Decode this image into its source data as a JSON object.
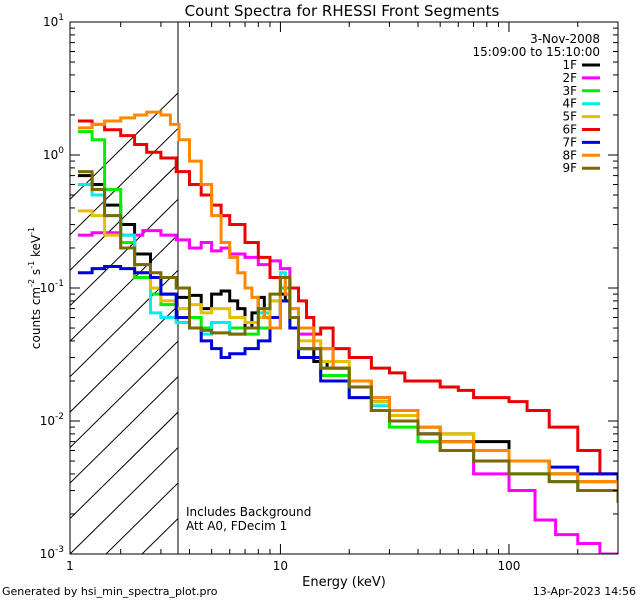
{
  "chart_data": {
    "type": "line",
    "title": "Count Spectra for RHESSI Front Segments",
    "xlabel": "Energy (keV)",
    "ylabel": "counts cm^-2 s^-1 keV^-1",
    "ylabel_parts": {
      "base": "counts cm",
      "exp1": "-2",
      "mid": " s",
      "exp2": "-1",
      "mid2": " keV",
      "exp3": "-1"
    },
    "xscale": "log",
    "yscale": "log",
    "xlim": [
      1.2,
      300
    ],
    "ylim": [
      0.001,
      10
    ],
    "x_ticks": [
      {
        "value": 1,
        "label": "1"
      },
      {
        "value": 10,
        "label": "10"
      },
      {
        "value": 100,
        "label": "100"
      }
    ],
    "y_ticks": [
      {
        "value": 0.001,
        "base": "10",
        "exp": "-3"
      },
      {
        "value": 0.01,
        "base": "10",
        "exp": "-2"
      },
      {
        "value": 0.1,
        "base": "10",
        "exp": "-1"
      },
      {
        "value": 1,
        "base": "10",
        "exp": "0"
      },
      {
        "value": 10,
        "base": "10",
        "exp": "1"
      }
    ],
    "date": "3-Nov-2008",
    "time_range": "15:09:00 to 15:10:00",
    "shaded_region_max_energy": 3,
    "annotations": [
      "Includes Background",
      "Att A0, FDecim 1"
    ],
    "legend_position": "top-right",
    "series": [
      {
        "name": "1F",
        "color": "#000000",
        "x": [
          1.3,
          1.5,
          1.7,
          2.0,
          2.3,
          2.7,
          3.0,
          3.5,
          4.0,
          4.5,
          5.0,
          5.5,
          6.0,
          6.5,
          7.0,
          7.5,
          8.0,
          8.5,
          9.0,
          10.0,
          10.5,
          11.0,
          12.0,
          14.0,
          16.0,
          20.0,
          25.0,
          30.0,
          40.0,
          50.0,
          70.0,
          100.0,
          150.0,
          200.0,
          300.0
        ],
        "y": [
          0.7,
          0.6,
          0.42,
          0.3,
          0.18,
          0.12,
          0.09,
          0.085,
          0.088,
          0.07,
          0.09,
          0.095,
          0.08,
          0.07,
          0.05,
          0.065,
          0.085,
          0.06,
          0.05,
          0.09,
          0.08,
          0.06,
          0.035,
          0.028,
          0.025,
          0.02,
          0.014,
          0.012,
          0.009,
          0.008,
          0.007,
          0.005,
          0.004,
          0.0035,
          0.0028
        ]
      },
      {
        "name": "2F",
        "color": "#ff00ff",
        "x": [
          1.3,
          1.5,
          2.0,
          2.5,
          3.0,
          3.5,
          4.0,
          4.5,
          5.0,
          5.5,
          6.0,
          7.0,
          8.0,
          9.0,
          10.0,
          11.0,
          12.0,
          14.0,
          17.0,
          20.0,
          25.0,
          30.0,
          40.0,
          50.0,
          70.0,
          100.0,
          130.0,
          160.0,
          200.0,
          250.0,
          300.0
        ],
        "y": [
          0.25,
          0.26,
          0.25,
          0.27,
          0.25,
          0.23,
          0.2,
          0.22,
          0.19,
          0.2,
          0.18,
          0.17,
          0.15,
          0.16,
          0.14,
          0.06,
          0.045,
          0.035,
          0.025,
          0.02,
          0.015,
          0.012,
          0.008,
          0.006,
          0.004,
          0.003,
          0.0018,
          0.0014,
          0.0012,
          0.001,
          0.00095
        ]
      },
      {
        "name": "3F",
        "color": "#00ee00",
        "x": [
          1.3,
          1.5,
          1.7,
          2.0,
          2.3,
          2.7,
          3.0,
          3.5,
          4.0,
          4.5,
          5.0,
          6.0,
          7.0,
          8.0,
          9.0,
          10.0,
          11.0,
          12.0,
          15.0,
          20.0,
          25.0,
          30.0,
          40.0,
          50.0,
          70.0,
          100.0,
          150.0,
          200.0,
          300.0
        ],
        "y": [
          1.5,
          1.3,
          0.55,
          0.22,
          0.12,
          0.09,
          0.075,
          0.07,
          0.06,
          0.05,
          0.055,
          0.05,
          0.045,
          0.05,
          0.06,
          0.1,
          0.05,
          0.03,
          0.022,
          0.015,
          0.012,
          0.009,
          0.007,
          0.006,
          0.005,
          0.004,
          0.0035,
          0.003,
          0.0025
        ]
      },
      {
        "name": "4F",
        "color": "#00eeee",
        "x": [
          1.3,
          1.5,
          1.7,
          2.0,
          2.3,
          2.7,
          3.0,
          3.5,
          4.0,
          4.5,
          5.0,
          6.0,
          7.0,
          8.0,
          9.0,
          10.0,
          10.5,
          11.0,
          12.0,
          15.0,
          20.0,
          25.0,
          30.0,
          40.0,
          50.0,
          70.0,
          100.0,
          150.0,
          200.0,
          300.0
        ],
        "y": [
          0.6,
          0.5,
          0.35,
          0.25,
          0.15,
          0.065,
          0.06,
          0.055,
          0.05,
          0.045,
          0.055,
          0.045,
          0.05,
          0.065,
          0.08,
          0.13,
          0.09,
          0.06,
          0.035,
          0.025,
          0.018,
          0.013,
          0.01,
          0.008,
          0.007,
          0.005,
          0.004,
          0.0035,
          0.003,
          0.0025
        ]
      },
      {
        "name": "5F",
        "color": "#e6c000",
        "x": [
          1.3,
          1.5,
          1.7,
          2.0,
          2.3,
          2.7,
          3.0,
          3.5,
          4.0,
          4.5,
          5.0,
          6.0,
          7.0,
          8.0,
          9.0,
          10.0,
          11.0,
          12.0,
          15.0,
          20.0,
          25.0,
          30.0,
          40.0,
          50.0,
          70.0,
          100.0,
          150.0,
          200.0,
          300.0
        ],
        "y": [
          0.38,
          0.35,
          0.25,
          0.2,
          0.13,
          0.1,
          0.08,
          0.07,
          0.075,
          0.065,
          0.07,
          0.06,
          0.055,
          0.06,
          0.08,
          0.12,
          0.07,
          0.04,
          0.028,
          0.02,
          0.014,
          0.011,
          0.009,
          0.008,
          0.006,
          0.005,
          0.004,
          0.0035,
          0.003
        ]
      },
      {
        "name": "6F",
        "color": "#ee0000",
        "x": [
          1.3,
          1.5,
          1.7,
          2.0,
          2.3,
          2.6,
          3.0,
          3.5,
          4.0,
          4.5,
          5.0,
          5.5,
          6.0,
          7.0,
          8.0,
          9.0,
          10.0,
          11.0,
          12.0,
          13.0,
          14.0,
          15.0,
          17.0,
          20.0,
          25.0,
          30.0,
          35.0,
          40.0,
          50.0,
          60.0,
          70.0,
          80.0,
          100.0,
          120.0,
          150.0,
          200.0,
          250.0,
          300.0
        ],
        "y": [
          1.8,
          1.7,
          1.55,
          1.4,
          1.2,
          1.05,
          0.95,
          0.75,
          0.6,
          0.5,
          0.42,
          0.35,
          0.3,
          0.22,
          0.17,
          0.12,
          0.12,
          0.1,
          0.08,
          0.06,
          0.045,
          0.05,
          0.035,
          0.03,
          0.025,
          0.023,
          0.02,
          0.02,
          0.018,
          0.017,
          0.015,
          0.015,
          0.014,
          0.012,
          0.009,
          0.006,
          0.004,
          0.003
        ]
      },
      {
        "name": "7F",
        "color": "#0000dd",
        "x": [
          1.3,
          1.5,
          1.7,
          2.0,
          2.3,
          2.7,
          3.0,
          3.5,
          4.0,
          4.5,
          5.0,
          5.5,
          6.0,
          7.0,
          8.0,
          9.0,
          10.0,
          11.0,
          12.0,
          15.0,
          20.0,
          25.0,
          30.0,
          40.0,
          50.0,
          70.0,
          100.0,
          150.0,
          200.0,
          300.0
        ],
        "y": [
          0.13,
          0.14,
          0.145,
          0.14,
          0.13,
          0.12,
          0.09,
          0.06,
          0.05,
          0.04,
          0.035,
          0.03,
          0.032,
          0.035,
          0.04,
          0.06,
          0.08,
          0.05,
          0.03,
          0.02,
          0.015,
          0.012,
          0.01,
          0.008,
          0.007,
          0.006,
          0.005,
          0.0045,
          0.004,
          0.0035
        ]
      },
      {
        "name": "8F",
        "color": "#ff8800",
        "x": [
          1.3,
          1.5,
          1.7,
          2.0,
          2.3,
          2.6,
          3.0,
          3.3,
          3.6,
          4.0,
          4.5,
          5.0,
          5.5,
          6.0,
          6.5,
          7.0,
          7.5,
          8.0,
          8.5,
          9.0,
          10.0,
          10.5,
          11.0,
          12.0,
          14.0,
          17.0,
          20.0,
          25.0,
          30.0,
          40.0,
          50.0,
          70.0,
          100.0,
          150.0,
          200.0,
          300.0
        ],
        "y": [
          1.6,
          1.7,
          1.8,
          1.9,
          2.0,
          2.1,
          2.0,
          1.7,
          1.3,
          0.9,
          0.6,
          0.35,
          0.22,
          0.17,
          0.13,
          0.1,
          0.085,
          0.07,
          0.06,
          0.05,
          0.12,
          0.09,
          0.07,
          0.05,
          0.035,
          0.025,
          0.02,
          0.015,
          0.012,
          0.009,
          0.007,
          0.006,
          0.005,
          0.004,
          0.0035,
          0.003
        ]
      },
      {
        "name": "9F",
        "color": "#7a6a00",
        "x": [
          1.3,
          1.5,
          1.7,
          2.0,
          2.3,
          2.7,
          3.0,
          3.5,
          4.0,
          4.5,
          5.0,
          6.0,
          7.0,
          8.0,
          9.0,
          10.0,
          11.0,
          12.0,
          15.0,
          20.0,
          25.0,
          30.0,
          40.0,
          50.0,
          70.0,
          100.0,
          150.0,
          200.0,
          300.0
        ],
        "y": [
          0.75,
          0.55,
          0.35,
          0.2,
          0.15,
          0.13,
          0.12,
          0.1,
          0.05,
          0.048,
          0.046,
          0.045,
          0.05,
          0.07,
          0.09,
          0.12,
          0.06,
          0.035,
          0.025,
          0.018,
          0.012,
          0.01,
          0.008,
          0.006,
          0.005,
          0.004,
          0.0035,
          0.003,
          0.0025
        ]
      }
    ]
  },
  "footer": {
    "generated_by": "Generated by hsi_min_spectra_plot.pro",
    "timestamp": "13-Apr-2023 14:56"
  }
}
